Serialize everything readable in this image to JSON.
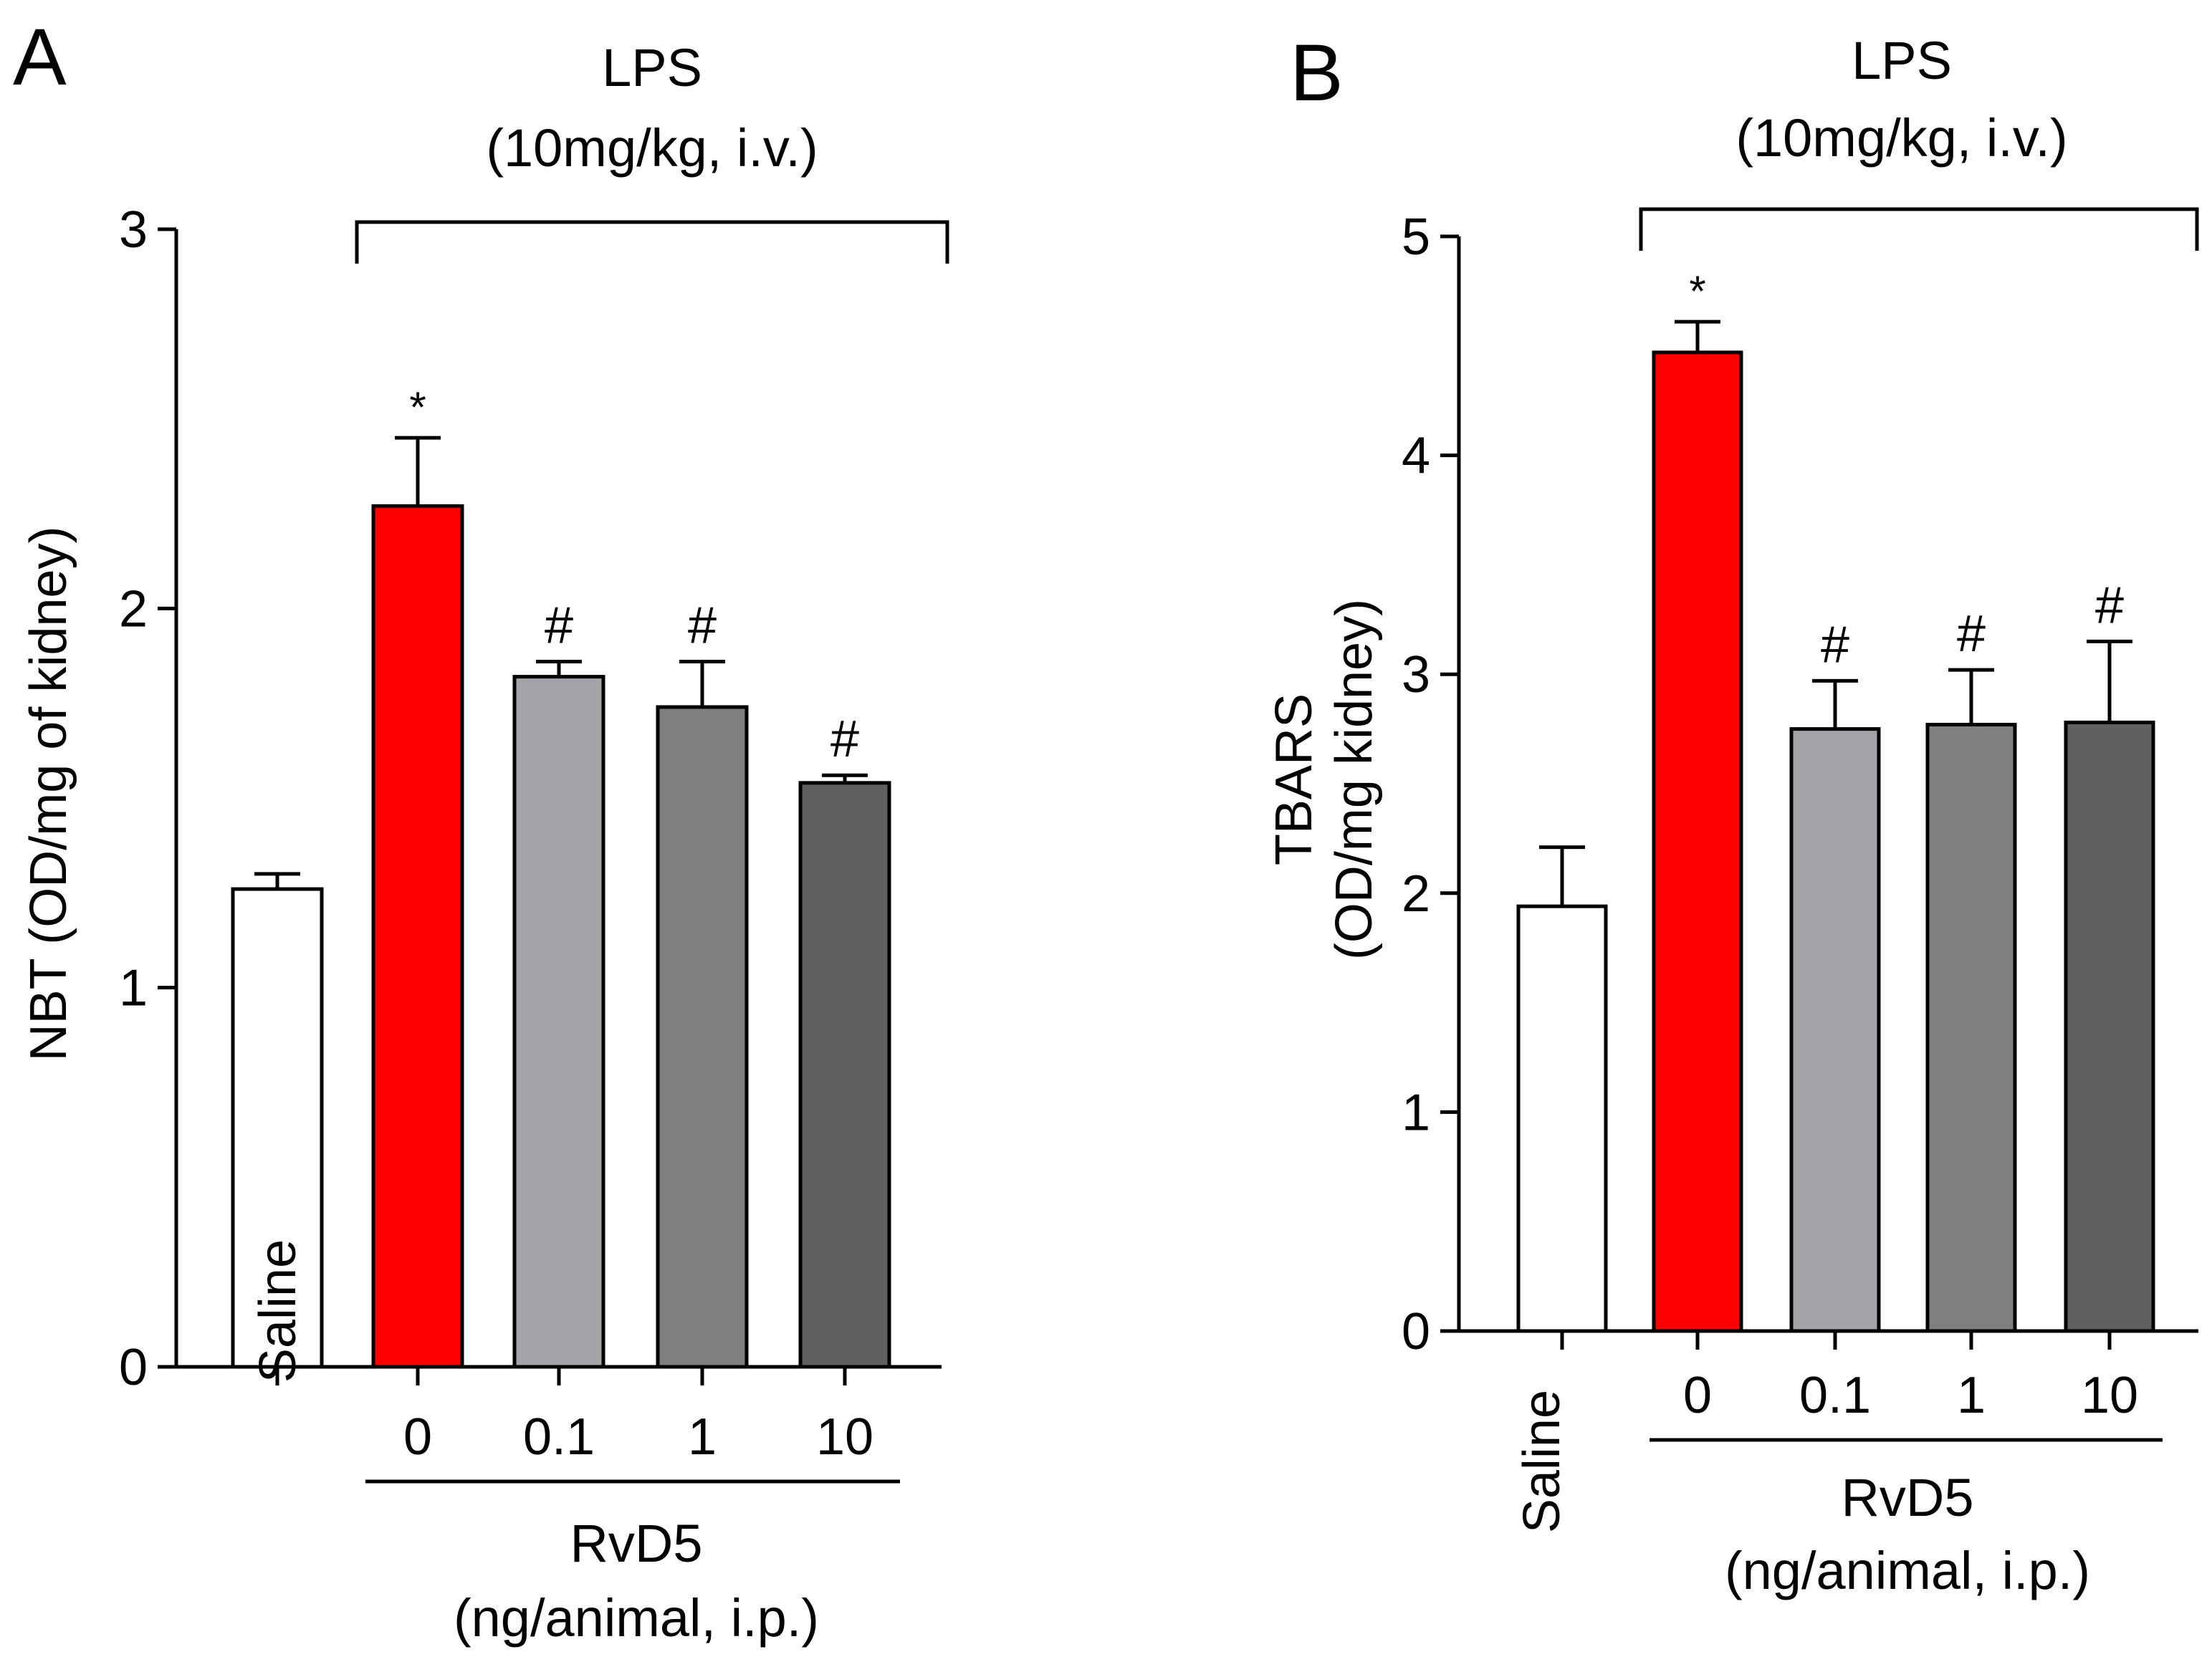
{
  "colors": {
    "saline": "#ffffff",
    "lps_vehicle": "#ff0000",
    "rvd5_0_1": "#a4a4a8",
    "rvd5_1": "#7f7f7f",
    "rvd5_10": "#606060",
    "stroke": "#000000"
  },
  "panels": [
    {
      "letter": "A",
      "lps_label": "LPS",
      "lps_dose": "(10mg/kg, i.v.)",
      "ylabel": "NBT (OD/mg of kidney)",
      "saline_label": "Saline",
      "group_label": "RvD5",
      "group_sub": "(ng/animal, i.p.)"
    },
    {
      "letter": "B",
      "lps_label": "LPS",
      "lps_dose": "(10mg/kg, i.v.)",
      "ylabel_line1": "TBARS",
      "ylabel_line2": "(OD/mg kidney)",
      "saline_label": "Saline",
      "group_label": "RvD5",
      "group_sub": "(ng/animal, i.p.)"
    }
  ],
  "chart_data": [
    {
      "type": "bar",
      "categories": [
        "Saline",
        "0",
        "0.1",
        "1",
        "10"
      ],
      "values": [
        1.26,
        2.27,
        1.82,
        1.74,
        1.54
      ],
      "errors": [
        0.04,
        0.18,
        0.04,
        0.12,
        0.02
      ],
      "significance": [
        "",
        "*",
        "#",
        "#",
        "#"
      ],
      "ylabel": "NBT (OD/mg of kidney)",
      "yticks": [
        "0",
        "1",
        "2",
        "3"
      ],
      "ylim": [
        0,
        3
      ],
      "grid": false
    },
    {
      "type": "bar",
      "categories": [
        "Saline",
        "0",
        "0.1",
        "1",
        "10"
      ],
      "values": [
        1.94,
        4.47,
        2.75,
        2.77,
        2.78
      ],
      "errors": [
        0.27,
        0.14,
        0.22,
        0.25,
        0.37
      ],
      "significance": [
        "",
        "*",
        "#",
        "#",
        "#"
      ],
      "ylabel": "TBARS (OD/mg kidney)",
      "yticks": [
        "0",
        "1",
        "2",
        "3",
        "4",
        "5"
      ],
      "ylim": [
        0,
        5
      ],
      "grid": false
    }
  ]
}
